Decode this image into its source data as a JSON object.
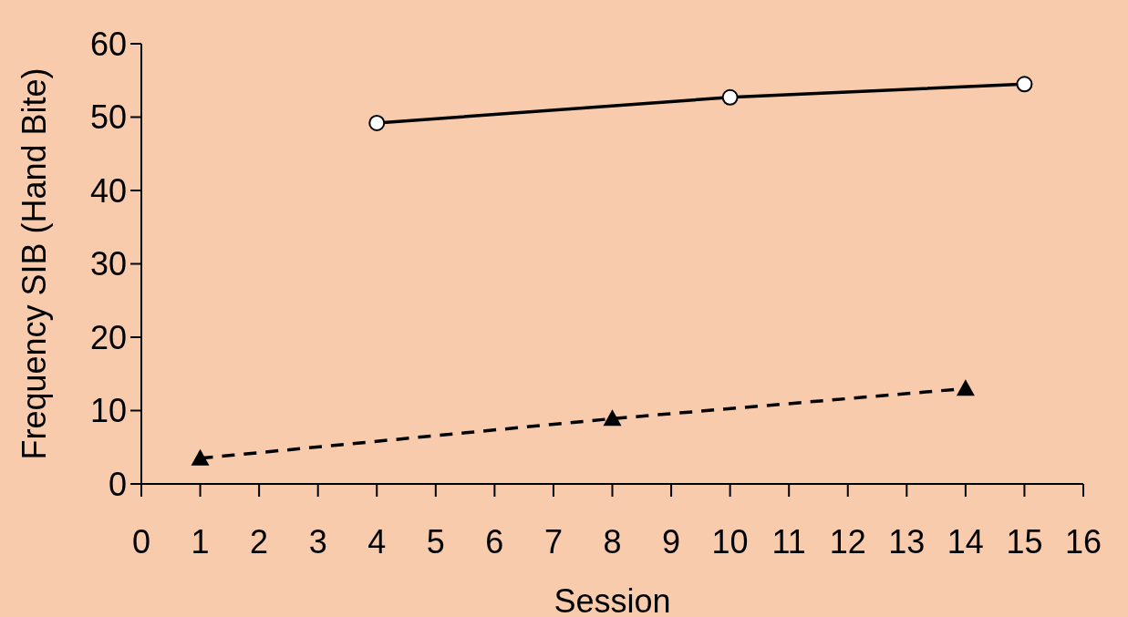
{
  "chart_data": {
    "type": "line",
    "xlabel": "Session",
    "ylabel": "Frequency SIB (Hand Bite)",
    "xlim": [
      0,
      16
    ],
    "xticks": [
      0,
      1,
      2,
      3,
      4,
      5,
      6,
      7,
      8,
      9,
      10,
      11,
      12,
      13,
      14,
      15,
      16
    ],
    "ylim": [
      0,
      60
    ],
    "yticks": [
      0,
      10,
      20,
      30,
      40,
      50,
      60
    ],
    "grid": false,
    "series": [
      {
        "color": "#000000",
        "x": [
          4,
          10,
          15
        ],
        "values": [
          49.2,
          52.7,
          54.5
        ],
        "marker": "circle",
        "line_style": "solid"
      },
      {
        "color": "#000000",
        "x": [
          1,
          8,
          14
        ],
        "values": [
          3.5,
          8.9,
          13
        ],
        "marker": "triangle",
        "line_style": "dashed"
      }
    ]
  }
}
